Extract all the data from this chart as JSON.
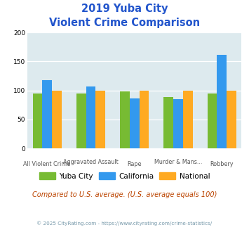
{
  "title_line1": "2019 Yuba City",
  "title_line2": "Violent Crime Comparison",
  "cat_top": [
    "",
    "Aggravated Assault",
    "",
    "Murder & Mans...",
    ""
  ],
  "cat_bottom": [
    "All Violent Crime",
    "",
    "Rape",
    "",
    "Robbery"
  ],
  "yuba_city": [
    95,
    95,
    98,
    89,
    95
  ],
  "california": [
    118,
    107,
    86,
    85,
    161
  ],
  "national": [
    100,
    100,
    100,
    100,
    100
  ],
  "colors": {
    "yuba_city": "#77bb33",
    "california": "#3399ee",
    "national": "#ffaa22"
  },
  "ylim": [
    0,
    200
  ],
  "yticks": [
    0,
    50,
    100,
    150,
    200
  ],
  "background_color": "#ddeaee",
  "title_color": "#2255cc",
  "subtitle_note": "Compared to U.S. average. (U.S. average equals 100)",
  "subtitle_note_color": "#bb4400",
  "footer": "© 2025 CityRating.com - https://www.cityrating.com/crime-statistics/",
  "footer_color": "#7799aa",
  "legend_labels": [
    "Yuba City",
    "California",
    "National"
  ],
  "bar_width": 0.22
}
